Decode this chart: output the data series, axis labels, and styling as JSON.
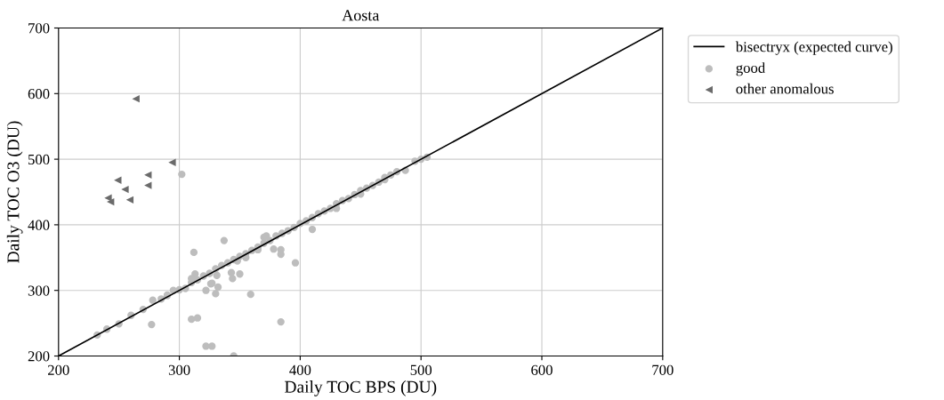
{
  "chart_data": {
    "type": "scatter",
    "title": "Aosta",
    "xlabel": "Daily TOC BPS (DU)",
    "ylabel": "Daily TOC O3 (DU)",
    "xlim": [
      200,
      700
    ],
    "ylim": [
      200,
      700
    ],
    "xticks": [
      200,
      300,
      400,
      500,
      600,
      700
    ],
    "yticks": [
      200,
      300,
      400,
      500,
      600,
      700
    ],
    "grid": true,
    "legend": "top right",
    "series": [
      {
        "name": "bisectryx (expected curve)",
        "type": "line",
        "color": "#000000",
        "marker": "none",
        "line_style": "solid",
        "x": [
          200,
          700
        ],
        "values": [
          200,
          700
        ]
      },
      {
        "name": "good",
        "color": "#bdbdbd",
        "marker": "circle",
        "x": [
          232,
          240,
          250,
          260,
          270,
          278,
          285,
          290,
          300,
          305,
          310,
          315,
          320,
          325,
          330,
          335,
          340,
          345,
          350,
          355,
          360,
          365,
          370,
          375,
          380,
          385,
          390,
          395,
          400,
          405,
          410,
          415,
          420,
          425,
          430,
          435,
          440,
          445,
          450,
          455,
          460,
          465,
          470,
          475,
          480,
          495,
          500,
          505,
          302,
          337,
          312,
          396,
          359,
          384,
          277,
          310,
          315,
          322,
          327,
          345,
          384,
          384,
          378,
          348,
          326,
          330,
          322,
          327,
          331,
          313,
          344,
          343,
          350,
          332,
          430,
          410,
          355,
          365,
          370,
          372,
          295,
          290,
          310,
          487,
          450,
          470
        ],
        "values": [
          232,
          241,
          249,
          262,
          271,
          285,
          287,
          292,
          301,
          303,
          312,
          316,
          322,
          326,
          333,
          338,
          342,
          347,
          352,
          356,
          361,
          366,
          372,
          376,
          383,
          387,
          391,
          396,
          402,
          406,
          411,
          417,
          421,
          425,
          432,
          437,
          440,
          446,
          452,
          456,
          460,
          465,
          469,
          476,
          481,
          497,
          500,
          503,
          477,
          376,
          358,
          342,
          294,
          252,
          248,
          256,
          258,
          215,
          215,
          200,
          362,
          355,
          363,
          345,
          310,
          295,
          300,
          311,
          323,
          325,
          318,
          327,
          325,
          305,
          425,
          393,
          350,
          362,
          381,
          383,
          300,
          293,
          318,
          483,
          447,
          472
        ]
      },
      {
        "name": "other anomalous",
        "color": "#6b6b6b",
        "marker": "triangle",
        "x": [
          264,
          294,
          274,
          274,
          249,
          255,
          241,
          243,
          259
        ],
        "values": [
          592,
          495,
          476,
          460,
          468,
          454,
          441,
          435,
          438
        ]
      }
    ]
  }
}
